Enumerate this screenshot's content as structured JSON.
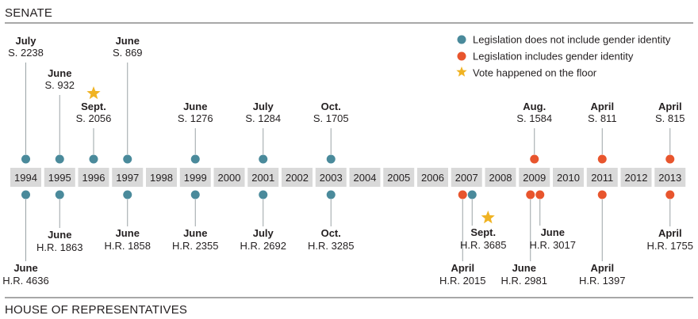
{
  "senate_title": "SENATE",
  "house_title": "HOUSE OF REPRESENTATIVES",
  "colors": {
    "no_gender_identity": "#4a8a9b",
    "includes_gender_identity": "#e8552d",
    "floor_vote": "#f0b323",
    "year_box": "#d9d9d9",
    "stem": "#9aa3a6",
    "rule": "#8c8c8c"
  },
  "legend": [
    {
      "key": "no_gender_identity",
      "label": "Legislation does not include gender identity",
      "shape": "circle"
    },
    {
      "key": "includes_gender_identity",
      "label": "Legislation includes gender identity",
      "shape": "circle"
    },
    {
      "key": "floor_vote",
      "label": "Vote happened on the floor",
      "shape": "star"
    }
  ],
  "chart_data": {
    "type": "timeline",
    "years": [
      1994,
      1995,
      1996,
      1997,
      1998,
      1999,
      2000,
      2001,
      2002,
      2003,
      2004,
      2005,
      2006,
      2007,
      2008,
      2009,
      2010,
      2011,
      2012,
      2013
    ],
    "senate": [
      {
        "year": 1994,
        "month": "July",
        "bill": "S. 2238",
        "gender_identity": false,
        "floor_vote": false
      },
      {
        "year": 1995,
        "month": "June",
        "bill": "S. 932",
        "gender_identity": false,
        "floor_vote": false
      },
      {
        "year": 1996,
        "month": "Sept.",
        "bill": "S. 2056",
        "gender_identity": false,
        "floor_vote": true
      },
      {
        "year": 1997,
        "month": "June",
        "bill": "S. 869",
        "gender_identity": false,
        "floor_vote": false
      },
      {
        "year": 1999,
        "month": "June",
        "bill": "S. 1276",
        "gender_identity": false,
        "floor_vote": false
      },
      {
        "year": 2001,
        "month": "July",
        "bill": "S. 1284",
        "gender_identity": false,
        "floor_vote": false
      },
      {
        "year": 2003,
        "month": "Oct.",
        "bill": "S. 1705",
        "gender_identity": false,
        "floor_vote": false
      },
      {
        "year": 2009,
        "month": "Aug.",
        "bill": "S. 1584",
        "gender_identity": true,
        "floor_vote": false
      },
      {
        "year": 2011,
        "month": "April",
        "bill": "S. 811",
        "gender_identity": true,
        "floor_vote": false
      },
      {
        "year": 2013,
        "month": "April",
        "bill": "S. 815",
        "gender_identity": true,
        "floor_vote": false
      }
    ],
    "house": [
      {
        "year": 1994,
        "month": "June",
        "bill": "H.R. 4636",
        "gender_identity": false,
        "floor_vote": false
      },
      {
        "year": 1995,
        "month": "June",
        "bill": "H.R. 1863",
        "gender_identity": false,
        "floor_vote": false
      },
      {
        "year": 1997,
        "month": "June",
        "bill": "H.R. 1858",
        "gender_identity": false,
        "floor_vote": false
      },
      {
        "year": 1999,
        "month": "June",
        "bill": "H.R. 2355",
        "gender_identity": false,
        "floor_vote": false
      },
      {
        "year": 2001,
        "month": "July",
        "bill": "H.R. 2692",
        "gender_identity": false,
        "floor_vote": false
      },
      {
        "year": 2003,
        "month": "Oct.",
        "bill": "H.R. 3285",
        "gender_identity": false,
        "floor_vote": false
      },
      {
        "year": 2007,
        "month": "April",
        "bill": "H.R. 2015",
        "gender_identity": true,
        "floor_vote": false
      },
      {
        "year": 2007,
        "month": "Sept.",
        "bill": "H.R. 3685",
        "gender_identity": false,
        "floor_vote": true
      },
      {
        "year": 2009,
        "month": "June",
        "bill": "H.R. 2981",
        "gender_identity": true,
        "floor_vote": false
      },
      {
        "year": 2009,
        "month": "June",
        "bill": "H.R. 3017",
        "gender_identity": true,
        "floor_vote": false
      },
      {
        "year": 2011,
        "month": "April",
        "bill": "H.R. 1397",
        "gender_identity": true,
        "floor_vote": false
      },
      {
        "year": 2013,
        "month": "April",
        "bill": "H.R. 1755",
        "gender_identity": true,
        "floor_vote": false
      }
    ]
  }
}
